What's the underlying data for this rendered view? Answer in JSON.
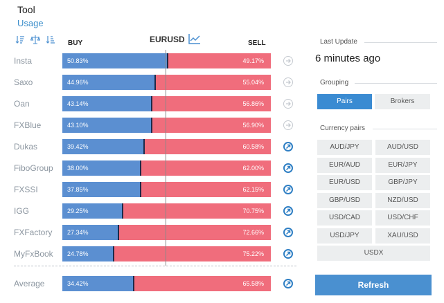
{
  "header": {
    "title": "Tool",
    "usage_link": "Usage"
  },
  "table": {
    "pair": "EURUSD",
    "buy_label": "BUY",
    "sell_label": "SELL",
    "rows": [
      {
        "name": "Insta",
        "buy": "50.83%",
        "sell": "49.17%",
        "buy_pct": 50.83,
        "icon": "grey"
      },
      {
        "name": "Saxo",
        "buy": "44.96%",
        "sell": "55.04%",
        "buy_pct": 44.96,
        "icon": "grey"
      },
      {
        "name": "Oan",
        "buy": "43.14%",
        "sell": "56.86%",
        "buy_pct": 43.14,
        "icon": "grey"
      },
      {
        "name": "FXBlue",
        "buy": "43.10%",
        "sell": "56.90%",
        "buy_pct": 43.1,
        "icon": "grey"
      },
      {
        "name": "Dukas",
        "buy": "39.42%",
        "sell": "60.58%",
        "buy_pct": 39.42,
        "icon": "blue"
      },
      {
        "name": "FiboGroup",
        "buy": "38.00%",
        "sell": "62.00%",
        "buy_pct": 38.0,
        "icon": "blue"
      },
      {
        "name": "FXSSI",
        "buy": "37.85%",
        "sell": "62.15%",
        "buy_pct": 37.85,
        "icon": "blue"
      },
      {
        "name": "IGG",
        "buy": "29.25%",
        "sell": "70.75%",
        "buy_pct": 29.25,
        "icon": "blue"
      },
      {
        "name": "FXFactory",
        "buy": "27.34%",
        "sell": "72.66%",
        "buy_pct": 27.34,
        "icon": "blue"
      },
      {
        "name": "MyFxBook",
        "buy": "24.78%",
        "sell": "75.22%",
        "buy_pct": 24.78,
        "icon": "blue"
      }
    ],
    "average": {
      "name": "Average",
      "buy": "34.42%",
      "sell": "65.58%",
      "buy_pct": 34.42,
      "icon": "blue"
    }
  },
  "sidebar": {
    "last_update_title": "Last Update",
    "last_update_value": "6 minutes ago",
    "grouping_title": "Grouping",
    "grouping_options": [
      "Pairs",
      "Brokers"
    ],
    "grouping_selected": "Pairs",
    "currency_pairs_title": "Currency pairs",
    "currency_pairs": [
      "AUD/JPY",
      "AUD/USD",
      "EUR/AUD",
      "EUR/JPY",
      "EUR/USD",
      "GBP/JPY",
      "GBP/USD",
      "NZD/USD",
      "USD/CAD",
      "USD/CHF",
      "USD/JPY",
      "XAU/USD",
      "USDX"
    ],
    "refresh_label": "Refresh"
  },
  "colors": {
    "buy": "#5b8fd1",
    "sell": "#f06d7c",
    "accent": "#3a8bd2"
  }
}
